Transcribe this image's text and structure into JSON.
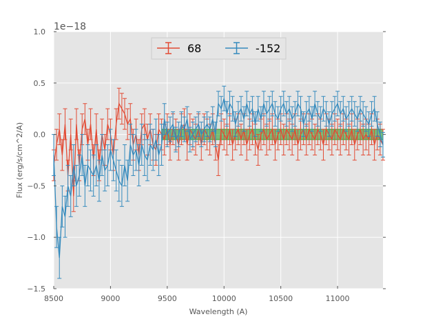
{
  "chart_data": {
    "type": "line",
    "title": "",
    "xlabel": "Wavelength (A)",
    "ylabel": "Flux (erg/s/cm^2/A)",
    "y_offset_label": "1e−18",
    "xlim": [
      8500,
      11400
    ],
    "ylim": [
      -1.5,
      1.0
    ],
    "xticks": [
      8500,
      9000,
      9500,
      10000,
      10500,
      11000
    ],
    "xtick_labels": [
      "8500",
      "9000",
      "9500",
      "10000",
      "10500",
      "11000"
    ],
    "yticks": [
      -1.5,
      -1.0,
      -0.5,
      0.0,
      0.5,
      1.0
    ],
    "ytick_labels": [
      "−1.5",
      "−1.0",
      "−0.5",
      "0.0",
      "0.5",
      "1.0"
    ],
    "grid": true,
    "legend_position": "top-center",
    "band": {
      "x_start": 9450,
      "x_end": 11400,
      "y_low": -0.05,
      "y_high": 0.05,
      "color": "#2ca02c"
    },
    "series": [
      {
        "name": "68",
        "color": "#E24A33",
        "x": [
          8500,
          8525,
          8550,
          8575,
          8600,
          8625,
          8650,
          8675,
          8700,
          8725,
          8750,
          8775,
          8800,
          8825,
          8850,
          8875,
          8900,
          8925,
          8950,
          8975,
          9000,
          9025,
          9050,
          9075,
          9100,
          9125,
          9150,
          9175,
          9200,
          9225,
          9250,
          9275,
          9300,
          9325,
          9350,
          9375,
          9400,
          9425,
          9450,
          9475,
          9500,
          9525,
          9550,
          9575,
          9600,
          9625,
          9650,
          9675,
          9700,
          9725,
          9750,
          9775,
          9800,
          9825,
          9850,
          9875,
          9900,
          9925,
          9950,
          9975,
          10000,
          10025,
          10050,
          10075,
          10100,
          10125,
          10150,
          10175,
          10200,
          10225,
          10250,
          10275,
          10300,
          10325,
          10350,
          10375,
          10400,
          10425,
          10450,
          10475,
          10500,
          10525,
          10550,
          10575,
          10600,
          10625,
          10650,
          10675,
          10700,
          10725,
          10750,
          10775,
          10800,
          10825,
          10850,
          10875,
          10900,
          10925,
          10950,
          10975,
          11000,
          11025,
          11050,
          11075,
          11100,
          11125,
          11150,
          11175,
          11200,
          11225,
          11250,
          11275,
          11300,
          11325,
          11350,
          11375,
          11400
        ],
        "y": [
          -0.3,
          -0.1,
          0.05,
          -0.2,
          0.1,
          -0.4,
          0.0,
          -0.6,
          0.1,
          -0.3,
          0.05,
          0.15,
          -0.1,
          0.1,
          -0.25,
          0.05,
          -0.3,
          0.0,
          -0.15,
          0.1,
          0.0,
          -0.2,
          0.1,
          0.3,
          0.25,
          0.2,
          0.1,
          0.15,
          -0.1,
          0.0,
          -0.2,
          0.05,
          0.1,
          -0.05,
          0.05,
          -0.1,
          -0.15,
          0.05,
          0.0,
          -0.05,
          0.05,
          -0.1,
          0.05,
          0.0,
          -0.1,
          0.05,
          0.1,
          -0.1,
          0.05,
          0.0,
          -0.05,
          0.05,
          -0.1,
          0.05,
          0.0,
          -0.05,
          0.05,
          -0.1,
          -0.25,
          0.05,
          0.0,
          -0.05,
          0.05,
          -0.1,
          0.0,
          0.05,
          -0.05,
          0.05,
          -0.1,
          0.0,
          0.05,
          -0.05,
          -0.15,
          0.0,
          0.05,
          -0.05,
          0.0,
          0.05,
          -0.1,
          0.0,
          0.05,
          -0.05,
          0.05,
          0.0,
          -0.05,
          0.05,
          -0.1,
          0.0,
          0.05,
          -0.05,
          0.05,
          0.0,
          -0.05,
          0.05,
          0.0,
          -0.1,
          0.05,
          0.0,
          -0.05,
          0.05,
          0.0,
          -0.05,
          0.05,
          0.0,
          -0.05,
          0.05,
          -0.1,
          0.0,
          0.05,
          -0.05,
          0.0,
          -0.05,
          0.05,
          -0.1,
          0.0,
          -0.05,
          -0.1
        ],
        "err": [
          0.15,
          0.15,
          0.15,
          0.15,
          0.15,
          0.15,
          0.15,
          0.15,
          0.15,
          0.15,
          0.15,
          0.15,
          0.15,
          0.15,
          0.15,
          0.15,
          0.15,
          0.15,
          0.15,
          0.15,
          0.15,
          0.15,
          0.15,
          0.15,
          0.15,
          0.15,
          0.15,
          0.15,
          0.15,
          0.15,
          0.15,
          0.15,
          0.15,
          0.15,
          0.15,
          0.15,
          0.15,
          0.15,
          0.15,
          0.15,
          0.15,
          0.15,
          0.15,
          0.15,
          0.15,
          0.15,
          0.15,
          0.15,
          0.15,
          0.15,
          0.15,
          0.15,
          0.15,
          0.15,
          0.15,
          0.15,
          0.15,
          0.15,
          0.15,
          0.15,
          0.15,
          0.15,
          0.15,
          0.15,
          0.15,
          0.15,
          0.15,
          0.15,
          0.15,
          0.15,
          0.15,
          0.15,
          0.15,
          0.15,
          0.15,
          0.15,
          0.15,
          0.15,
          0.15,
          0.15,
          0.15,
          0.15,
          0.15,
          0.15,
          0.15,
          0.15,
          0.15,
          0.15,
          0.15,
          0.15,
          0.15,
          0.15,
          0.15,
          0.15,
          0.15,
          0.15,
          0.15,
          0.15,
          0.15,
          0.15,
          0.15,
          0.15,
          0.15,
          0.15,
          0.15,
          0.15,
          0.15,
          0.15,
          0.15,
          0.15,
          0.15,
          0.15,
          0.15,
          0.15,
          0.15,
          0.15,
          0.15
        ]
      },
      {
        "name": "-152",
        "color": "#348ABD",
        "x": [
          8500,
          8525,
          8550,
          8575,
          8600,
          8625,
          8650,
          8675,
          8700,
          8725,
          8750,
          8775,
          8800,
          8825,
          8850,
          8875,
          8900,
          8925,
          8950,
          8975,
          9000,
          9025,
          9050,
          9075,
          9100,
          9125,
          9150,
          9175,
          9200,
          9225,
          9250,
          9275,
          9300,
          9325,
          9350,
          9375,
          9400,
          9425,
          9450,
          9475,
          9500,
          9525,
          9550,
          9575,
          9600,
          9625,
          9650,
          9675,
          9700,
          9725,
          9750,
          9775,
          9800,
          9825,
          9850,
          9875,
          9900,
          9925,
          9950,
          9975,
          10000,
          10025,
          10050,
          10075,
          10100,
          10125,
          10150,
          10175,
          10200,
          10225,
          10250,
          10275,
          10300,
          10325,
          10350,
          10375,
          10400,
          10425,
          10450,
          10475,
          10500,
          10525,
          10550,
          10575,
          10600,
          10625,
          10650,
          10675,
          10700,
          10725,
          10750,
          10775,
          10800,
          10825,
          10850,
          10875,
          10900,
          10925,
          10950,
          10975,
          11000,
          11025,
          11050,
          11075,
          11100,
          11125,
          11150,
          11175,
          11200,
          11225,
          11250,
          11275,
          11300,
          11325,
          11350,
          11375,
          11400
        ],
        "y": [
          -0.2,
          -0.9,
          -1.2,
          -0.7,
          -0.8,
          -0.5,
          -0.6,
          -0.3,
          -0.5,
          -0.4,
          -0.2,
          -0.5,
          -0.3,
          -0.35,
          -0.4,
          -0.3,
          -0.45,
          -0.2,
          -0.35,
          -0.3,
          -0.15,
          -0.25,
          -0.35,
          -0.45,
          -0.5,
          -0.3,
          -0.45,
          -0.1,
          -0.2,
          -0.15,
          -0.3,
          -0.1,
          -0.2,
          -0.25,
          -0.1,
          -0.15,
          -0.05,
          -0.2,
          -0.1,
          0.15,
          0.0,
          0.05,
          0.1,
          -0.05,
          0.0,
          0.1,
          0.05,
          0.15,
          -0.05,
          0.0,
          0.05,
          0.1,
          0.0,
          0.05,
          0.1,
          0.05,
          0.15,
          0.0,
          0.3,
          0.25,
          0.35,
          0.2,
          0.3,
          0.25,
          0.1,
          0.2,
          0.25,
          0.15,
          0.3,
          0.2,
          0.25,
          0.1,
          0.25,
          0.15,
          0.3,
          0.2,
          0.25,
          0.3,
          0.2,
          0.15,
          0.25,
          0.3,
          0.2,
          0.25,
          0.15,
          0.2,
          0.3,
          0.25,
          0.1,
          0.2,
          0.25,
          0.15,
          0.3,
          0.2,
          0.15,
          0.25,
          0.2,
          0.1,
          0.2,
          0.25,
          0.3,
          0.2,
          0.25,
          0.15,
          0.2,
          0.25,
          0.2,
          0.15,
          0.25,
          0.2,
          0.15,
          0.1,
          0.2,
          0.25,
          0.1,
          0.0,
          -0.1
        ],
        "err": [
          0.2,
          0.2,
          0.2,
          0.2,
          0.2,
          0.2,
          0.2,
          0.2,
          0.2,
          0.2,
          0.2,
          0.2,
          0.2,
          0.2,
          0.2,
          0.2,
          0.2,
          0.2,
          0.2,
          0.2,
          0.2,
          0.2,
          0.2,
          0.2,
          0.2,
          0.2,
          0.2,
          0.2,
          0.2,
          0.2,
          0.2,
          0.2,
          0.2,
          0.2,
          0.2,
          0.2,
          0.2,
          0.2,
          0.2,
          0.15,
          0.12,
          0.12,
          0.12,
          0.12,
          0.12,
          0.12,
          0.12,
          0.12,
          0.12,
          0.12,
          0.12,
          0.12,
          0.12,
          0.12,
          0.12,
          0.12,
          0.12,
          0.12,
          0.12,
          0.12,
          0.12,
          0.12,
          0.12,
          0.12,
          0.12,
          0.12,
          0.12,
          0.12,
          0.12,
          0.12,
          0.12,
          0.12,
          0.12,
          0.12,
          0.12,
          0.12,
          0.12,
          0.12,
          0.12,
          0.12,
          0.12,
          0.12,
          0.12,
          0.12,
          0.12,
          0.12,
          0.12,
          0.12,
          0.12,
          0.12,
          0.12,
          0.12,
          0.12,
          0.12,
          0.12,
          0.12,
          0.12,
          0.12,
          0.12,
          0.12,
          0.12,
          0.12,
          0.12,
          0.12,
          0.12,
          0.12,
          0.12,
          0.12,
          0.12,
          0.12,
          0.12,
          0.12,
          0.12,
          0.12,
          0.12,
          0.12,
          0.12
        ]
      }
    ]
  }
}
